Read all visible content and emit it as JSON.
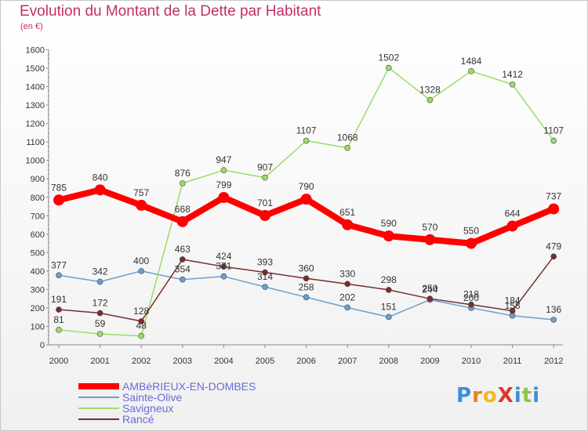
{
  "title": "Evolution du Montant de la Dette par Habitant",
  "subtitle": "(en €)",
  "logo_text": "ProXiti",
  "logo_colors": [
    "#3b8fd9",
    "#e8831a",
    "#f2b820",
    "#d83a2d",
    "#3b8fd9",
    "#8cc63f",
    "#3b8fd9"
  ],
  "chart_data": {
    "type": "line",
    "title": "Evolution du Montant de la Dette par Habitant",
    "ylabel": "(en €)",
    "x": [
      2000,
      2001,
      2002,
      2003,
      2004,
      2005,
      2006,
      2007,
      2008,
      2009,
      2010,
      2011,
      2012
    ],
    "ylim": [
      0,
      1600
    ],
    "yticks": [
      0,
      100,
      200,
      300,
      400,
      500,
      600,
      700,
      800,
      900,
      1000,
      1100,
      1200,
      1300,
      1400,
      1500,
      1600
    ],
    "grid": false,
    "legend_position": "bottom-left",
    "series": [
      {
        "name": "AMBéRIEUX-EN-DOMBES",
        "color": "#ff0000",
        "label_color": "#6a6ad8",
        "emphasis": true,
        "values": [
          785,
          840,
          757,
          668,
          799,
          701,
          790,
          651,
          590,
          570,
          550,
          644,
          737
        ]
      },
      {
        "name": "Sainte-Olive",
        "color": "#6b9fcf",
        "label_color": "#6a6ad8",
        "emphasis": false,
        "values": [
          377,
          342,
          400,
          354,
          371,
          314,
          258,
          202,
          151,
          244,
          200,
          158,
          136
        ]
      },
      {
        "name": "Savigneux",
        "color": "#99dd66",
        "label_color": "#6a6ad8",
        "emphasis": false,
        "values": [
          81,
          59,
          48,
          876,
          947,
          907,
          1107,
          1068,
          1502,
          1328,
          1484,
          1412,
          1107
        ]
      },
      {
        "name": "Rancé",
        "color": "#7a2d2d",
        "label_color": "#6a6ad8",
        "emphasis": false,
        "values": [
          191,
          172,
          128,
          463,
          424,
          393,
          360,
          330,
          298,
          250,
          218,
          184,
          479
        ]
      }
    ]
  }
}
